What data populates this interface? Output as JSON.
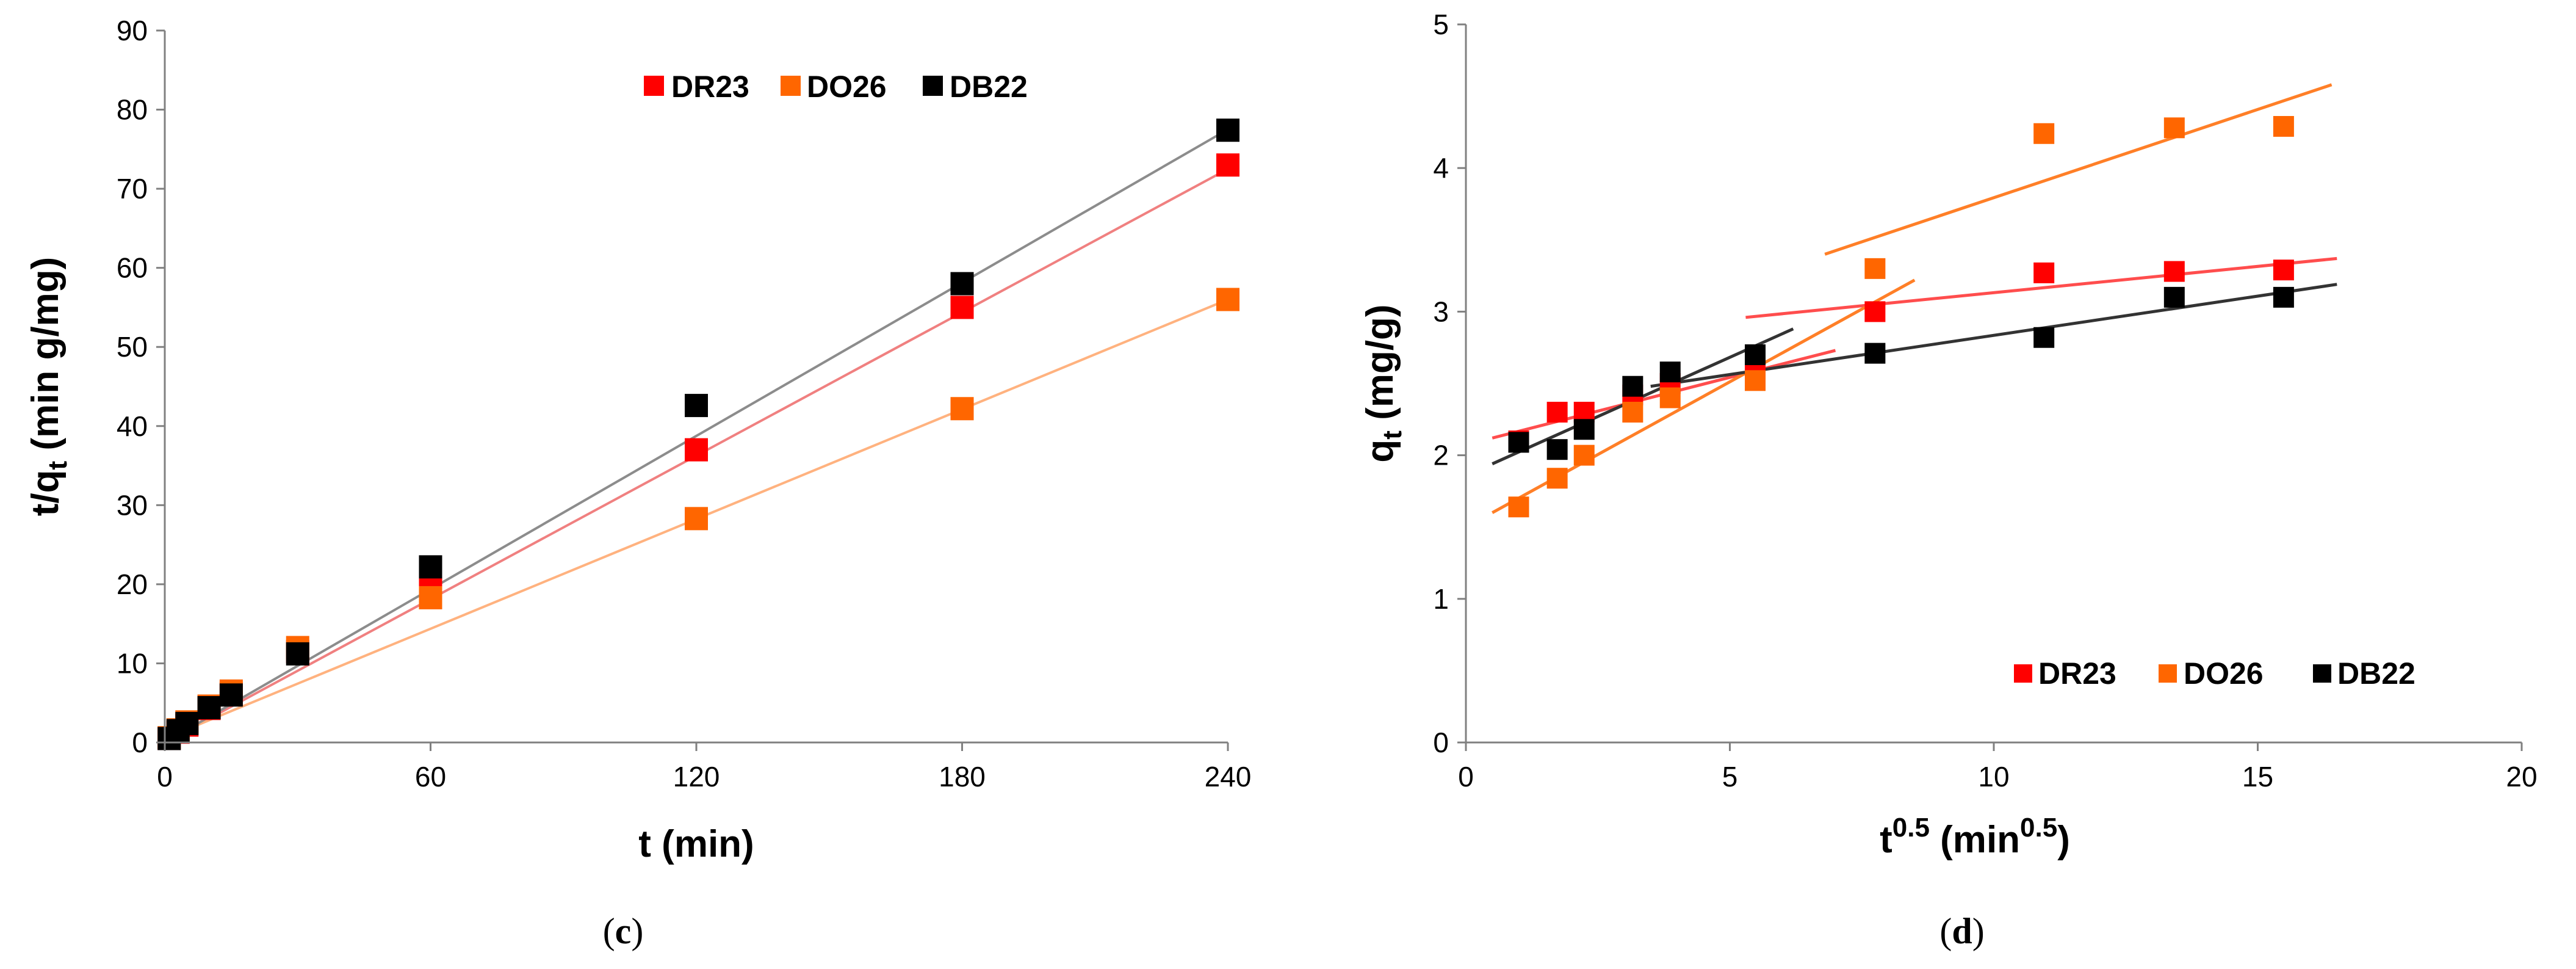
{
  "chart_data": [
    {
      "type": "scatter",
      "panel_label": "c",
      "xlabel": "t (min)",
      "ylabel": "t/qt (min g/mg)",
      "xlim": [
        0,
        240
      ],
      "ylim": [
        0,
        90
      ],
      "xticks": [
        0,
        60,
        120,
        180,
        240
      ],
      "yticks": [
        0,
        10,
        20,
        30,
        40,
        50,
        60,
        70,
        80,
        90
      ],
      "legend_position": "top-right",
      "series": [
        {
          "name": "DR23",
          "marker_color": "#ff0000",
          "line_color": "#f08080",
          "points": [
            [
              1,
              0.5
            ],
            [
              3,
              1.3
            ],
            [
              5,
              2.2
            ],
            [
              10,
              4.3
            ],
            [
              15,
              6.2
            ],
            [
              30,
              11.5
            ],
            [
              60,
              19.5
            ],
            [
              120,
              37
            ],
            [
              180,
              55
            ],
            [
              240,
              73
            ]
          ],
          "fit_lines": [
            {
              "x": [
                0,
                240
              ],
              "y": [
                0,
                72.5
              ]
            }
          ]
        },
        {
          "name": "DO26",
          "marker_color": "#ff6600",
          "line_color": "#ffb27f",
          "points": [
            [
              1,
              0.6
            ],
            [
              3,
              1.6
            ],
            [
              5,
              2.6
            ],
            [
              10,
              4.6
            ],
            [
              15,
              6.5
            ],
            [
              30,
              12
            ],
            [
              60,
              18.3
            ],
            [
              120,
              28.3
            ],
            [
              180,
              42.2
            ],
            [
              240,
              56
            ]
          ],
          "fit_lines": [
            {
              "x": [
                0,
                240
              ],
              "y": [
                0.5,
                56
              ]
            }
          ]
        },
        {
          "name": "DB22",
          "marker_color": "#000000",
          "line_color": "#8c8c8c",
          "points": [
            [
              1,
              0.5
            ],
            [
              3,
              1.5
            ],
            [
              5,
              2.4
            ],
            [
              10,
              4.4
            ],
            [
              15,
              6
            ],
            [
              30,
              11.2
            ],
            [
              60,
              22.2
            ],
            [
              120,
              42.6
            ],
            [
              180,
              58
            ],
            [
              240,
              77.4
            ]
          ],
          "fit_lines": [
            {
              "x": [
                0,
                240
              ],
              "y": [
                0,
                77.5
              ]
            }
          ]
        }
      ]
    },
    {
      "type": "scatter",
      "panel_label": "d",
      "xlabel": "t0.5 (min0.5)",
      "ylabel": "qt (mg/g)",
      "xlim": [
        0,
        20
      ],
      "ylim": [
        0,
        5
      ],
      "xticks": [
        0,
        5,
        10,
        15,
        20
      ],
      "yticks": [
        0,
        1,
        2,
        3,
        4,
        5
      ],
      "legend_position": "bottom-right",
      "series": [
        {
          "name": "DR23",
          "marker_color": "#ff0000",
          "line_color": "#ff4d4d",
          "points": [
            [
              1,
              2.1
            ],
            [
              1.73,
              2.3
            ],
            [
              2.24,
              2.3
            ],
            [
              3.16,
              2.42
            ],
            [
              3.87,
              2.5
            ],
            [
              5.48,
              2.6
            ],
            [
              7.75,
              3
            ],
            [
              10.95,
              3.27
            ],
            [
              13.42,
              3.28
            ],
            [
              15.49,
              3.29
            ]
          ],
          "fit_lines": [
            {
              "x": [
                0.5,
                7
              ],
              "y": [
                2.12,
                2.73
              ]
            },
            {
              "x": [
                5.3,
                16.5
              ],
              "y": [
                2.96,
                3.37
              ]
            }
          ]
        },
        {
          "name": "DO26",
          "marker_color": "#ff6600",
          "line_color": "#ff7f27",
          "points": [
            [
              1,
              1.64
            ],
            [
              1.73,
              1.84
            ],
            [
              2.24,
              2
            ],
            [
              3.16,
              2.3
            ],
            [
              3.87,
              2.4
            ],
            [
              5.48,
              2.52
            ],
            [
              7.75,
              3.3
            ],
            [
              10.95,
              4.24
            ],
            [
              13.42,
              4.28
            ],
            [
              15.49,
              4.29
            ]
          ],
          "fit_lines": [
            {
              "x": [
                0.5,
                8.5
              ],
              "y": [
                1.6,
                3.22
              ]
            },
            {
              "x": [
                6.8,
                16.4
              ],
              "y": [
                3.4,
                4.58
              ]
            }
          ]
        },
        {
          "name": "DB22",
          "marker_color": "#000000",
          "line_color": "#333333",
          "points": [
            [
              1,
              2.09
            ],
            [
              1.73,
              2.04
            ],
            [
              2.24,
              2.18
            ],
            [
              3.16,
              2.48
            ],
            [
              3.87,
              2.58
            ],
            [
              5.48,
              2.7
            ],
            [
              7.75,
              2.71
            ],
            [
              10.95,
              2.82
            ],
            [
              13.42,
              3.1
            ],
            [
              15.49,
              3.1
            ]
          ],
          "fit_lines": [
            {
              "x": [
                0.5,
                6.2
              ],
              "y": [
                1.94,
                2.88
              ]
            },
            {
              "x": [
                3.5,
                16.5
              ],
              "y": [
                2.48,
                3.19
              ]
            }
          ]
        }
      ]
    }
  ]
}
